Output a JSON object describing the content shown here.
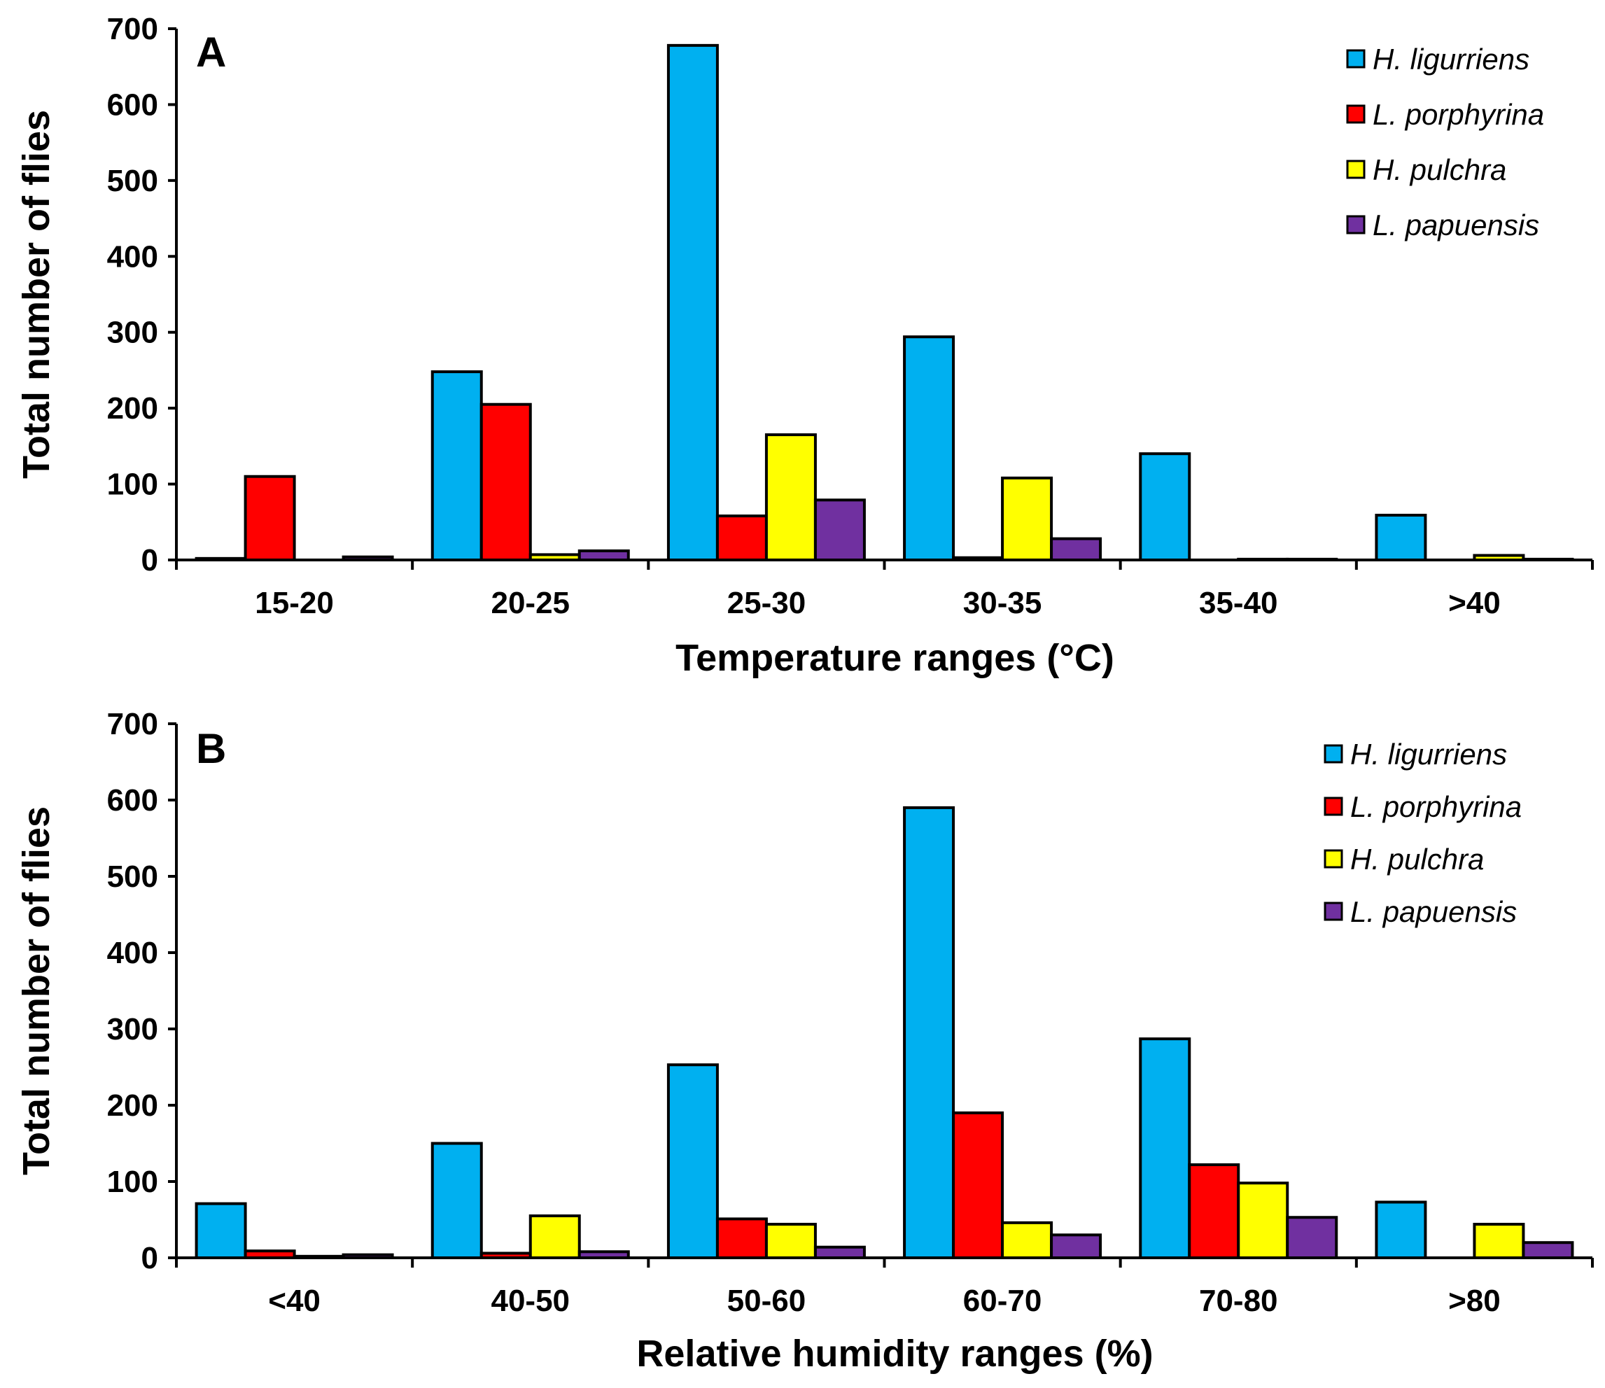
{
  "colors": {
    "H. ligurriens": "#00b0f0",
    "L. porphyrina": "#ff0000",
    "H. pulchra": "#ffff00",
    "L. papuensis": "#7030a0"
  },
  "chart_data": [
    {
      "type": "bar",
      "panel": "A",
      "title": "",
      "xlabel": "Temperature ranges (°C)",
      "ylabel": "Total number of flies",
      "ylim": [
        0,
        700
      ],
      "yticks": [
        0,
        100,
        200,
        300,
        400,
        500,
        600,
        700
      ],
      "categories": [
        "15-20",
        "20-25",
        "25-30",
        "30-35",
        "35-40",
        ">40"
      ],
      "series": [
        {
          "name": "H. ligurriens",
          "values": [
            2,
            248,
            678,
            294,
            140,
            59
          ]
        },
        {
          "name": "L. porphyrina",
          "values": [
            110,
            205,
            58,
            3,
            0,
            0
          ]
        },
        {
          "name": "H. pulchra",
          "values": [
            0,
            7,
            165,
            108,
            1,
            6
          ]
        },
        {
          "name": "L. papuensis",
          "values": [
            4,
            12,
            79,
            28,
            1,
            1
          ]
        }
      ],
      "legend": "top-right"
    },
    {
      "type": "bar",
      "panel": "B",
      "title": "",
      "xlabel": "Relative humidity ranges (%)",
      "ylabel": "Total number of flies",
      "ylim": [
        0,
        700
      ],
      "yticks": [
        0,
        100,
        200,
        300,
        400,
        500,
        600,
        700
      ],
      "categories": [
        "<40",
        "40-50",
        "50-60",
        "60-70",
        "70-80",
        ">80"
      ],
      "series": [
        {
          "name": "H. ligurriens",
          "values": [
            71,
            150,
            253,
            590,
            287,
            73
          ]
        },
        {
          "name": "L. porphyrina",
          "values": [
            9,
            6,
            51,
            190,
            122,
            0
          ]
        },
        {
          "name": "H. pulchra",
          "values": [
            2,
            55,
            44,
            46,
            98,
            44
          ]
        },
        {
          "name": "L. papuensis",
          "values": [
            4,
            8,
            14,
            30,
            53,
            20
          ]
        }
      ],
      "legend": "top-right"
    }
  ]
}
